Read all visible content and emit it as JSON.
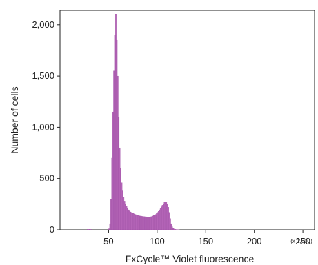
{
  "chart_data": {
    "type": "bar",
    "xlabel": "FxCycle™ Violet fluorescence",
    "ylabel": "Number of cells",
    "x_multiplier": "(x 1,000)",
    "xlim": [
      0,
      262
    ],
    "ylim": [
      0,
      2140
    ],
    "x_ticks": [
      {
        "value": 50,
        "label": "50"
      },
      {
        "value": 100,
        "label": "100"
      },
      {
        "value": 150,
        "label": "150"
      },
      {
        "value": 200,
        "label": "200"
      },
      {
        "value": 250,
        "label": "250"
      }
    ],
    "y_ticks": [
      {
        "value": 0,
        "label": "0"
      },
      {
        "value": 500,
        "label": "500"
      },
      {
        "value": 1000,
        "label": "1,000"
      },
      {
        "value": 1500,
        "label": "1,500"
      },
      {
        "value": 2000,
        "label": "2,000"
      }
    ],
    "bin_width": 1,
    "bins": [
      [
        28,
        5
      ],
      [
        29,
        5
      ],
      [
        30,
        5
      ],
      [
        31,
        5
      ],
      [
        50,
        10
      ],
      [
        51,
        60
      ],
      [
        52,
        300
      ],
      [
        53,
        700
      ],
      [
        54,
        1150
      ],
      [
        55,
        1550
      ],
      [
        56,
        1900
      ],
      [
        57,
        2100
      ],
      [
        58,
        1850
      ],
      [
        59,
        1500
      ],
      [
        60,
        1100
      ],
      [
        61,
        800
      ],
      [
        62,
        600
      ],
      [
        63,
        460
      ],
      [
        64,
        380
      ],
      [
        65,
        320
      ],
      [
        66,
        280
      ],
      [
        67,
        250
      ],
      [
        68,
        230
      ],
      [
        69,
        210
      ],
      [
        70,
        195
      ],
      [
        71,
        185
      ],
      [
        72,
        175
      ],
      [
        73,
        170
      ],
      [
        74,
        165
      ],
      [
        75,
        160
      ],
      [
        76,
        155
      ],
      [
        77,
        150
      ],
      [
        78,
        148
      ],
      [
        79,
        145
      ],
      [
        80,
        140
      ],
      [
        81,
        138
      ],
      [
        82,
        135
      ],
      [
        83,
        135
      ],
      [
        84,
        132
      ],
      [
        85,
        130
      ],
      [
        86,
        130
      ],
      [
        87,
        128
      ],
      [
        88,
        128
      ],
      [
        89,
        126
      ],
      [
        90,
        125
      ],
      [
        91,
        125
      ],
      [
        92,
        126
      ],
      [
        93,
        128
      ],
      [
        94,
        130
      ],
      [
        95,
        135
      ],
      [
        96,
        140
      ],
      [
        97,
        145
      ],
      [
        98,
        150
      ],
      [
        99,
        160
      ],
      [
        100,
        170
      ],
      [
        101,
        180
      ],
      [
        102,
        195
      ],
      [
        103,
        210
      ],
      [
        104,
        225
      ],
      [
        105,
        240
      ],
      [
        106,
        255
      ],
      [
        107,
        270
      ],
      [
        108,
        275
      ],
      [
        109,
        270
      ],
      [
        110,
        250
      ],
      [
        111,
        220
      ],
      [
        112,
        170
      ],
      [
        113,
        110
      ],
      [
        114,
        60
      ],
      [
        115,
        30
      ],
      [
        116,
        15
      ],
      [
        117,
        8
      ],
      [
        118,
        5
      ],
      [
        119,
        3
      ],
      [
        120,
        2
      ],
      [
        121,
        2
      ],
      [
        122,
        2
      ]
    ],
    "bar_color": "#b565b8",
    "bar_edge_color": "#9a4aa0",
    "axis_color": "#222222",
    "grid": false,
    "legend": "none"
  }
}
